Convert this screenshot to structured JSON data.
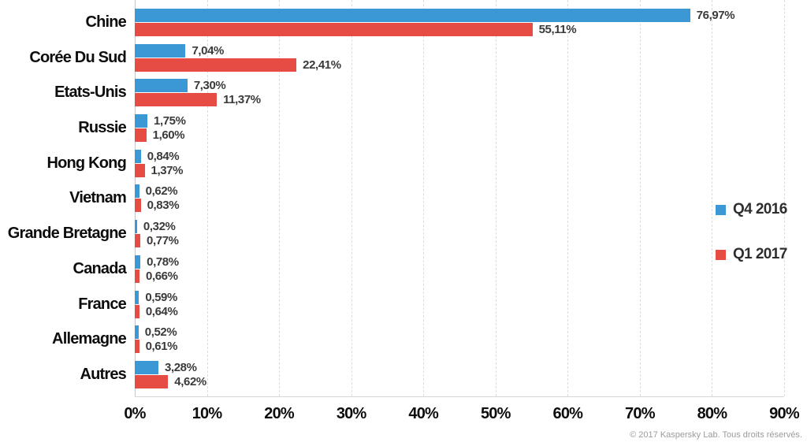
{
  "chart_data": {
    "type": "bar",
    "orientation": "horizontal",
    "title": "",
    "xlabel": "",
    "ylabel": "",
    "categories": [
      "Chine",
      "Corée Du Sud",
      "Etats-Unis",
      "Russie",
      "Hong Kong",
      "Vietnam",
      "Grande Bretagne",
      "Canada",
      "France",
      "Allemagne",
      "Autres"
    ],
    "series": [
      {
        "name": "Q4 2016",
        "color": "#3B98D5",
        "values": [
          76.97,
          7.04,
          7.3,
          1.75,
          0.84,
          0.62,
          0.32,
          0.78,
          0.59,
          0.52,
          3.28
        ],
        "labels": [
          "76,97%",
          "7,04%",
          "7,30%",
          "1,75%",
          "0,84%",
          "0,62%",
          "0,32%",
          "0,78%",
          "0,59%",
          "0,52%",
          "3,28%"
        ]
      },
      {
        "name": "Q1 2017",
        "color": "#E64C44",
        "values": [
          55.11,
          22.41,
          11.37,
          1.6,
          1.37,
          0.83,
          0.77,
          0.66,
          0.64,
          0.61,
          4.62
        ],
        "labels": [
          "55,11%",
          "22,41%",
          "11,37%",
          "1,60%",
          "1,37%",
          "0,83%",
          "0,77%",
          "0,66%",
          "0,64%",
          "0,61%",
          "4,62%"
        ]
      }
    ],
    "xlim": [
      0,
      90
    ],
    "x_tick_values": [
      0,
      10,
      20,
      30,
      40,
      50,
      60,
      70,
      80,
      90
    ],
    "x_tick_labels": [
      "0%",
      "10%",
      "20%",
      "30%",
      "40%",
      "50%",
      "60%",
      "70%",
      "80%",
      "90%"
    ],
    "grid": "vertical-dashed",
    "legend_position": "right"
  },
  "footer": {
    "copyright": "© 2017 Kaspersky Lab. Tous droits réservés."
  }
}
